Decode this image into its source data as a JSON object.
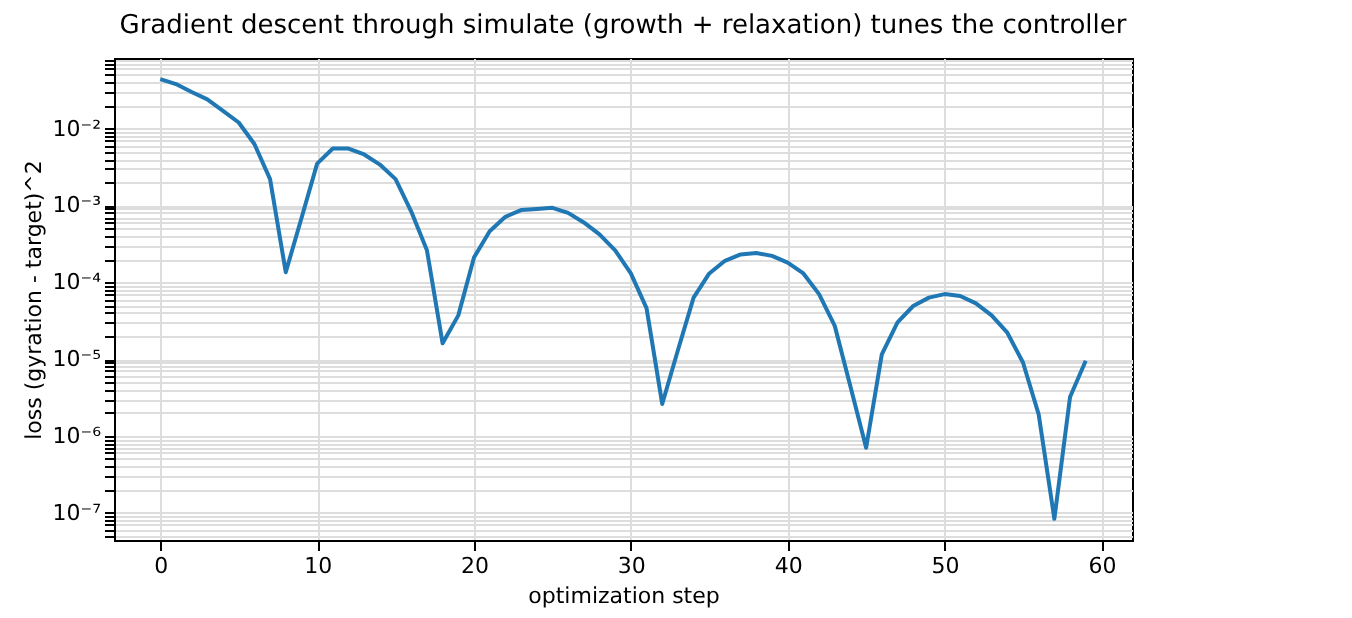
{
  "chart_data": {
    "type": "line",
    "title": "Gradient descent through simulate (growth + relaxation) tunes the controller",
    "xlabel": "optimization step",
    "ylabel": "loss  (gyration - target)^2",
    "log": "y",
    "grid": true,
    "line_style": "solid",
    "marker": "none",
    "x": [
      0,
      1,
      2,
      3,
      4,
      5,
      6,
      7,
      8,
      9,
      10,
      11,
      12,
      13,
      14,
      15,
      16,
      17,
      18,
      19,
      20,
      21,
      22,
      23,
      24,
      25,
      26,
      27,
      28,
      29,
      30,
      31,
      32,
      33,
      34,
      35,
      36,
      37,
      38,
      39,
      40,
      41,
      42,
      43,
      44,
      45,
      46,
      47,
      48,
      49,
      50,
      51,
      52,
      53,
      54,
      55,
      56,
      57,
      58,
      59
    ],
    "series": [
      {
        "color": "#1f77b4",
        "values": [
          0.044,
          0.038,
          0.03,
          0.024,
          0.017,
          0.012,
          0.0063,
          0.0022,
          0.000135,
          0.00068,
          0.0035,
          0.0055,
          0.0055,
          0.0046,
          0.0034,
          0.0022,
          0.00083,
          0.00026,
          1.6e-05,
          3.7e-05,
          0.00021,
          0.00046,
          0.00071,
          0.00087,
          0.0009,
          0.00093,
          0.0008,
          0.0006,
          0.00042,
          0.00026,
          0.00013,
          4.6e-05,
          2.6e-06,
          1.3e-05,
          6.3e-05,
          0.00013,
          0.00019,
          0.00023,
          0.00024,
          0.00022,
          0.00018,
          0.00013,
          7e-05,
          2.7e-05,
          4.4e-06,
          7e-07,
          1.15e-05,
          3e-05,
          4.9e-05,
          6.3e-05,
          7e-05,
          6.6e-05,
          5.3e-05,
          3.7e-05,
          2.2e-05,
          9e-06,
          1.9e-06,
          8.3e-08,
          3.2e-06,
          9.5e-06
        ]
      }
    ],
    "xlim": [
      -2.95,
      61.95
    ],
    "xticks": [
      0,
      10,
      20,
      30,
      40,
      50,
      60
    ],
    "ylim": [
      4.4e-08,
      0.083
    ],
    "yticks": [
      {
        "value": 5e-08,
        "label": null
      },
      {
        "value": 6e-08,
        "label": null
      },
      {
        "value": 7e-08,
        "label": null
      },
      {
        "value": 8e-08,
        "label": null
      },
      {
        "value": 9e-08,
        "label": null
      },
      {
        "value": 1e-07,
        "label": "10⁻⁷"
      },
      {
        "value": 2e-07,
        "label": null
      },
      {
        "value": 3e-07,
        "label": null
      },
      {
        "value": 4e-07,
        "label": null
      },
      {
        "value": 5e-07,
        "label": null
      },
      {
        "value": 6e-07,
        "label": null
      },
      {
        "value": 7e-07,
        "label": null
      },
      {
        "value": 8e-07,
        "label": null
      },
      {
        "value": 9e-07,
        "label": null
      },
      {
        "value": 1e-06,
        "label": "10⁻⁶"
      },
      {
        "value": 2e-06,
        "label": null
      },
      {
        "value": 3e-06,
        "label": null
      },
      {
        "value": 4e-06,
        "label": null
      },
      {
        "value": 5e-06,
        "label": null
      },
      {
        "value": 6e-06,
        "label": null
      },
      {
        "value": 7e-06,
        "label": null
      },
      {
        "value": 8e-06,
        "label": null
      },
      {
        "value": 9e-06,
        "label": null
      },
      {
        "value": 1e-05,
        "label": "10⁻⁵"
      },
      {
        "value": 2e-05,
        "label": null
      },
      {
        "value": 3e-05,
        "label": null
      },
      {
        "value": 4e-05,
        "label": null
      },
      {
        "value": 5e-05,
        "label": null
      },
      {
        "value": 6e-05,
        "label": null
      },
      {
        "value": 7e-05,
        "label": null
      },
      {
        "value": 8e-05,
        "label": null
      },
      {
        "value": 9e-05,
        "label": null
      },
      {
        "value": 0.0001,
        "label": "10⁻⁴"
      },
      {
        "value": 0.0002,
        "label": null
      },
      {
        "value": 0.0003,
        "label": null
      },
      {
        "value": 0.0004,
        "label": null
      },
      {
        "value": 0.0005,
        "label": null
      },
      {
        "value": 0.0006,
        "label": null
      },
      {
        "value": 0.0007,
        "label": null
      },
      {
        "value": 0.0008,
        "label": null
      },
      {
        "value": 0.0009,
        "label": null
      },
      {
        "value": 0.001,
        "label": "10⁻³"
      },
      {
        "value": 0.002,
        "label": null
      },
      {
        "value": 0.003,
        "label": null
      },
      {
        "value": 0.004,
        "label": null
      },
      {
        "value": 0.005,
        "label": null
      },
      {
        "value": 0.006,
        "label": null
      },
      {
        "value": 0.007,
        "label": null
      },
      {
        "value": 0.008,
        "label": null
      },
      {
        "value": 0.009,
        "label": null
      },
      {
        "value": 0.01,
        "label": "10⁻²"
      },
      {
        "value": 0.02,
        "label": null
      },
      {
        "value": 0.03,
        "label": null
      },
      {
        "value": 0.04,
        "label": null
      },
      {
        "value": 0.05,
        "label": null
      },
      {
        "value": 0.06,
        "label": null
      },
      {
        "value": 0.07,
        "label": null
      },
      {
        "value": 0.08,
        "label": null
      }
    ]
  }
}
